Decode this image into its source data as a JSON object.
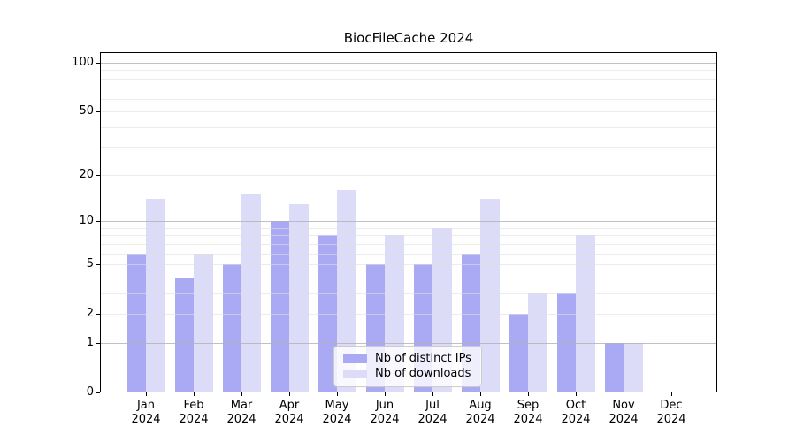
{
  "chart_data": {
    "type": "bar",
    "title": "BiocFileCache 2024",
    "categories": [
      "Jan",
      "Feb",
      "Mar",
      "Apr",
      "May",
      "Jun",
      "Jul",
      "Aug",
      "Sep",
      "Oct",
      "Nov",
      "Dec"
    ],
    "year": "2024",
    "series": [
      {
        "name": "Nb of distinct IPs",
        "color": "#a9a9f4",
        "values": [
          6,
          4,
          5,
          10,
          8,
          5,
          5,
          6,
          2,
          3,
          1,
          0
        ]
      },
      {
        "name": "Nb of downloads",
        "color": "#dcdcf8",
        "values": [
          14,
          6,
          15,
          13,
          16,
          8,
          9,
          14,
          3,
          8,
          1,
          0
        ]
      }
    ],
    "xlabel": "",
    "ylabel": "",
    "yscale": "log1p",
    "ylim": [
      0,
      116
    ],
    "yticks": [
      100,
      50,
      20,
      10,
      5,
      2,
      1,
      0
    ],
    "major_gridlines": [
      1,
      10,
      100
    ],
    "minor_gridlines": [
      2,
      3,
      4,
      5,
      6,
      7,
      8,
      9,
      20,
      30,
      40,
      50,
      60,
      70,
      80,
      90
    ],
    "grid": "horizontal, drawn over bars",
    "legend_position": "lower center"
  }
}
